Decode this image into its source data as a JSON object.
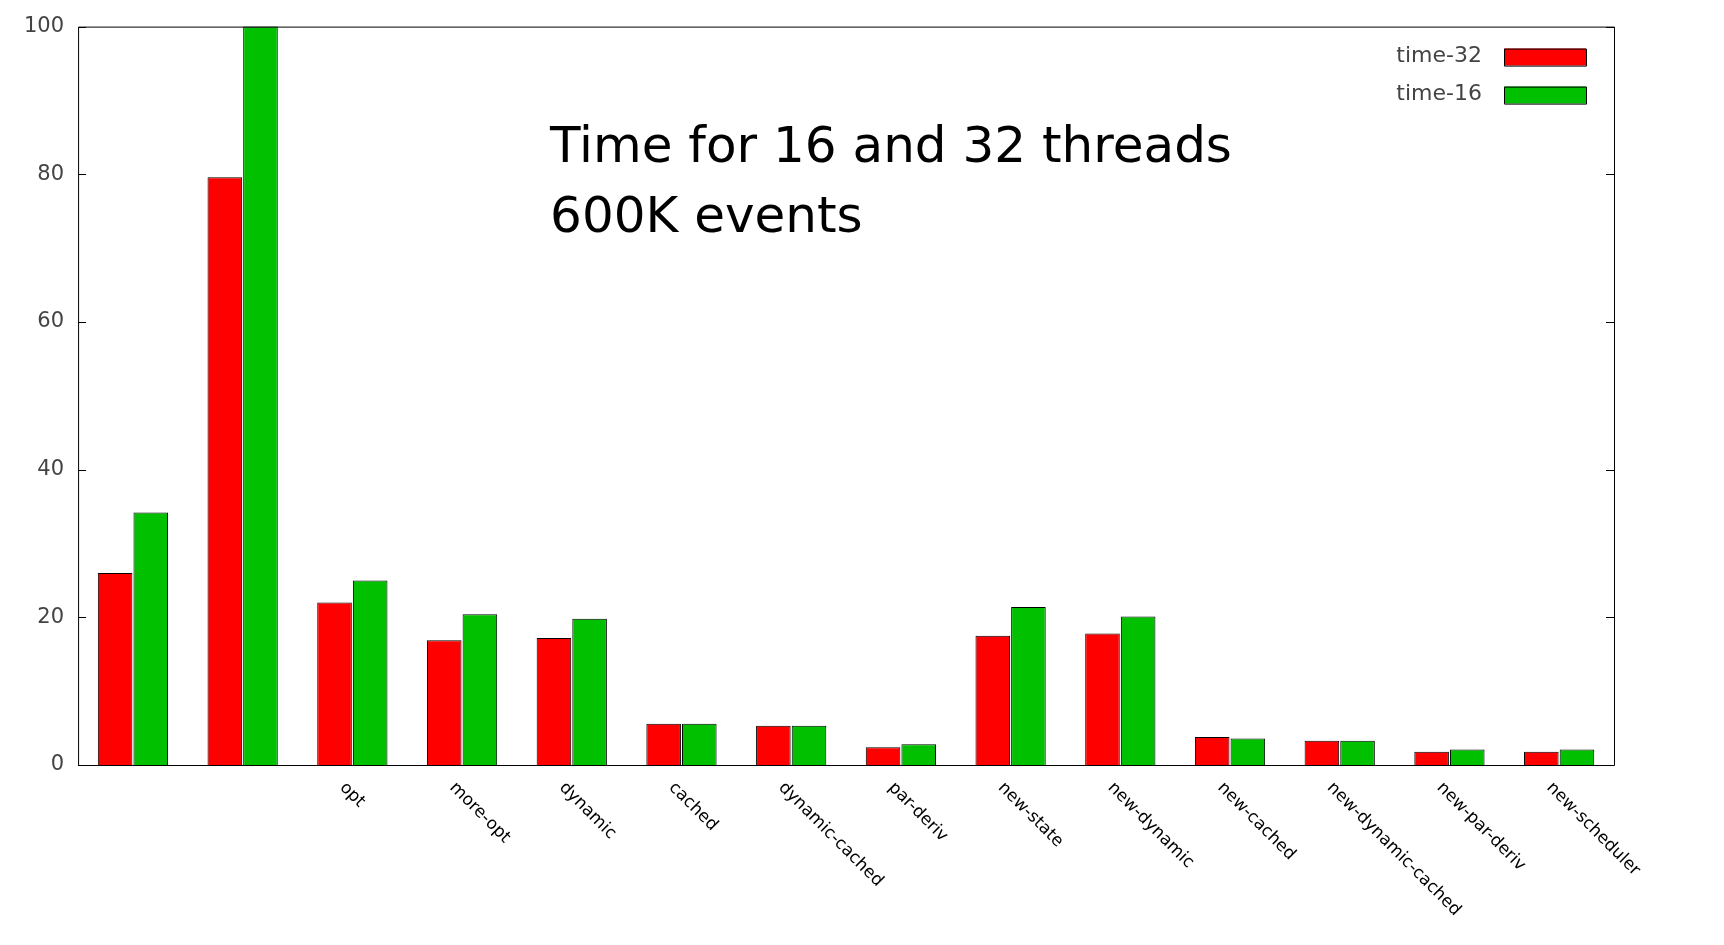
{
  "chart_data": {
    "type": "bar",
    "title": "Time for 16 and 32 threads\n600K events",
    "categories": [
      null,
      null,
      "opt",
      "more-opt",
      "dynamic",
      "cached",
      "dynamic-cached",
      "par-deriv",
      "new-state",
      "new-dynamic",
      "new-cached",
      "new-dynamic-cached",
      "new-par-deriv",
      "new-scheduler"
    ],
    "series": [
      {
        "name": "time-32",
        "color": "#ff0000",
        "values": [
          26,
          79.6,
          22,
          16.9,
          17.2,
          5.6,
          5.3,
          2.4,
          17.5,
          17.8,
          3.8,
          3.3,
          1.8,
          1.8
        ]
      },
      {
        "name": "time-16",
        "color": "#00c000",
        "values": [
          34.2,
          100,
          25,
          20.4,
          19.8,
          5.6,
          5.3,
          2.8,
          21.4,
          20.1,
          3.6,
          3.3,
          2.1,
          2.1
        ]
      }
    ],
    "ylim": [
      0,
      100
    ],
    "yticks": [
      0,
      20,
      40,
      60,
      80,
      100
    ],
    "grid": false,
    "legend": "top right"
  }
}
